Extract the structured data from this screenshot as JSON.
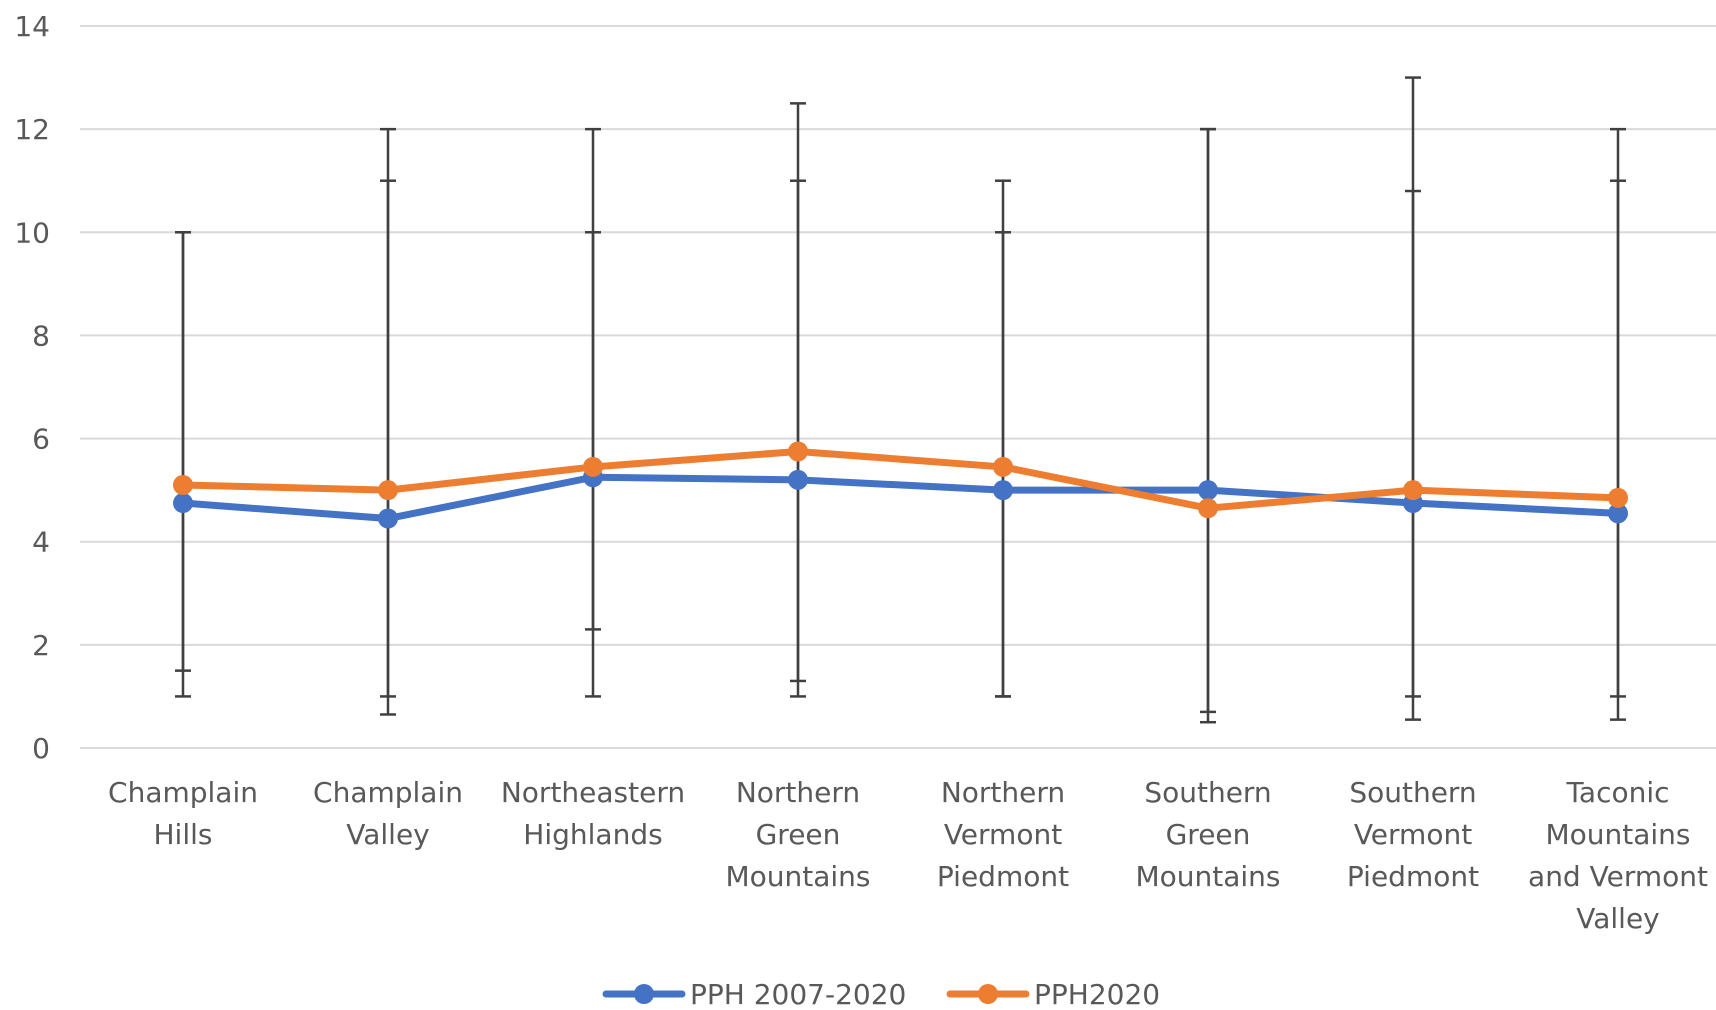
{
  "chart_data": {
    "type": "line",
    "title": "",
    "xlabel": "",
    "ylabel": "",
    "ylim": [
      0,
      14
    ],
    "yticks": [
      0,
      2,
      4,
      6,
      8,
      10,
      12,
      14
    ],
    "grid": true,
    "legend_position": "bottom",
    "categories": [
      [
        "Champlain",
        "Hills"
      ],
      [
        "Champlain",
        "Valley"
      ],
      [
        "Northeastern",
        "Highlands"
      ],
      [
        "Northern",
        "Green",
        "Mountains"
      ],
      [
        "Northern",
        "Vermont",
        "Piedmont"
      ],
      [
        "Southern",
        "Green",
        "Mountains"
      ],
      [
        "Southern",
        "Vermont",
        "Piedmont"
      ],
      [
        "Taconic",
        "Mountains",
        "and Vermont",
        "Valley"
      ]
    ],
    "series": [
      {
        "name": "PPH 2007-2020",
        "color": "#4472C4",
        "values": [
          4.75,
          4.45,
          5.25,
          5.2,
          5.0,
          5.0,
          4.75,
          4.55
        ],
        "error_low": [
          1.5,
          1.0,
          2.3,
          1.3,
          1.0,
          0.7,
          1.0,
          1.0
        ],
        "error_high": [
          10.0,
          11.0,
          10.0,
          11.0,
          10.0,
          12.0,
          10.8,
          11.0
        ]
      },
      {
        "name": "PPH2020",
        "color": "#ED7D31",
        "values": [
          5.1,
          5.0,
          5.45,
          5.75,
          5.45,
          4.65,
          5.0,
          4.85
        ],
        "error_low": [
          1.0,
          0.65,
          1.0,
          1.0,
          1.0,
          0.5,
          0.55,
          0.55
        ],
        "error_high": [
          10.0,
          12.0,
          12.0,
          12.5,
          11.0,
          12.0,
          13.0,
          12.0
        ]
      }
    ],
    "colors": {
      "gridline": "#D9D9D9",
      "errorbar": "#404040",
      "text": "#595959"
    }
  }
}
